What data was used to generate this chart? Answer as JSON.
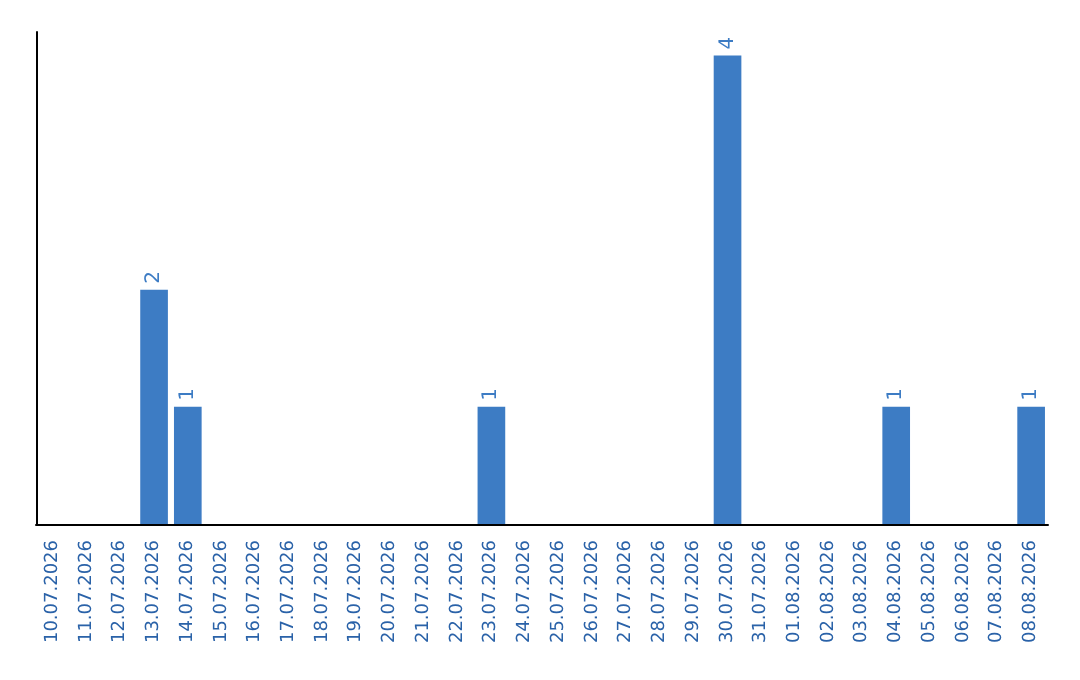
{
  "chart_data": {
    "type": "bar",
    "categories": [
      "10.07.2026",
      "11.07.2026",
      "12.07.2026",
      "13.07.2026",
      "14.07.2026",
      "15.07.2026",
      "16.07.2026",
      "17.07.2026",
      "18.07.2026",
      "19.07.2026",
      "20.07.2026",
      "21.07.2026",
      "22.07.2026",
      "23.07.2026",
      "24.07.2026",
      "25.07.2026",
      "26.07.2026",
      "27.07.2026",
      "28.07.2026",
      "29.07.2026",
      "30.07.2026",
      "31.07.2026",
      "01.08.2026",
      "02.08.2026",
      "03.08.2026",
      "04.08.2026",
      "05.08.2026",
      "06.08.2026",
      "07.08.2026",
      "08.08.2026"
    ],
    "values": [
      null,
      null,
      null,
      2,
      1,
      null,
      null,
      null,
      null,
      null,
      null,
      null,
      null,
      1,
      null,
      null,
      null,
      null,
      null,
      null,
      4,
      null,
      null,
      null,
      null,
      1,
      null,
      null,
      null,
      1
    ],
    "color": "#3d7cc4",
    "data_labels": true,
    "tick_labels": "x",
    "grid": false
  }
}
